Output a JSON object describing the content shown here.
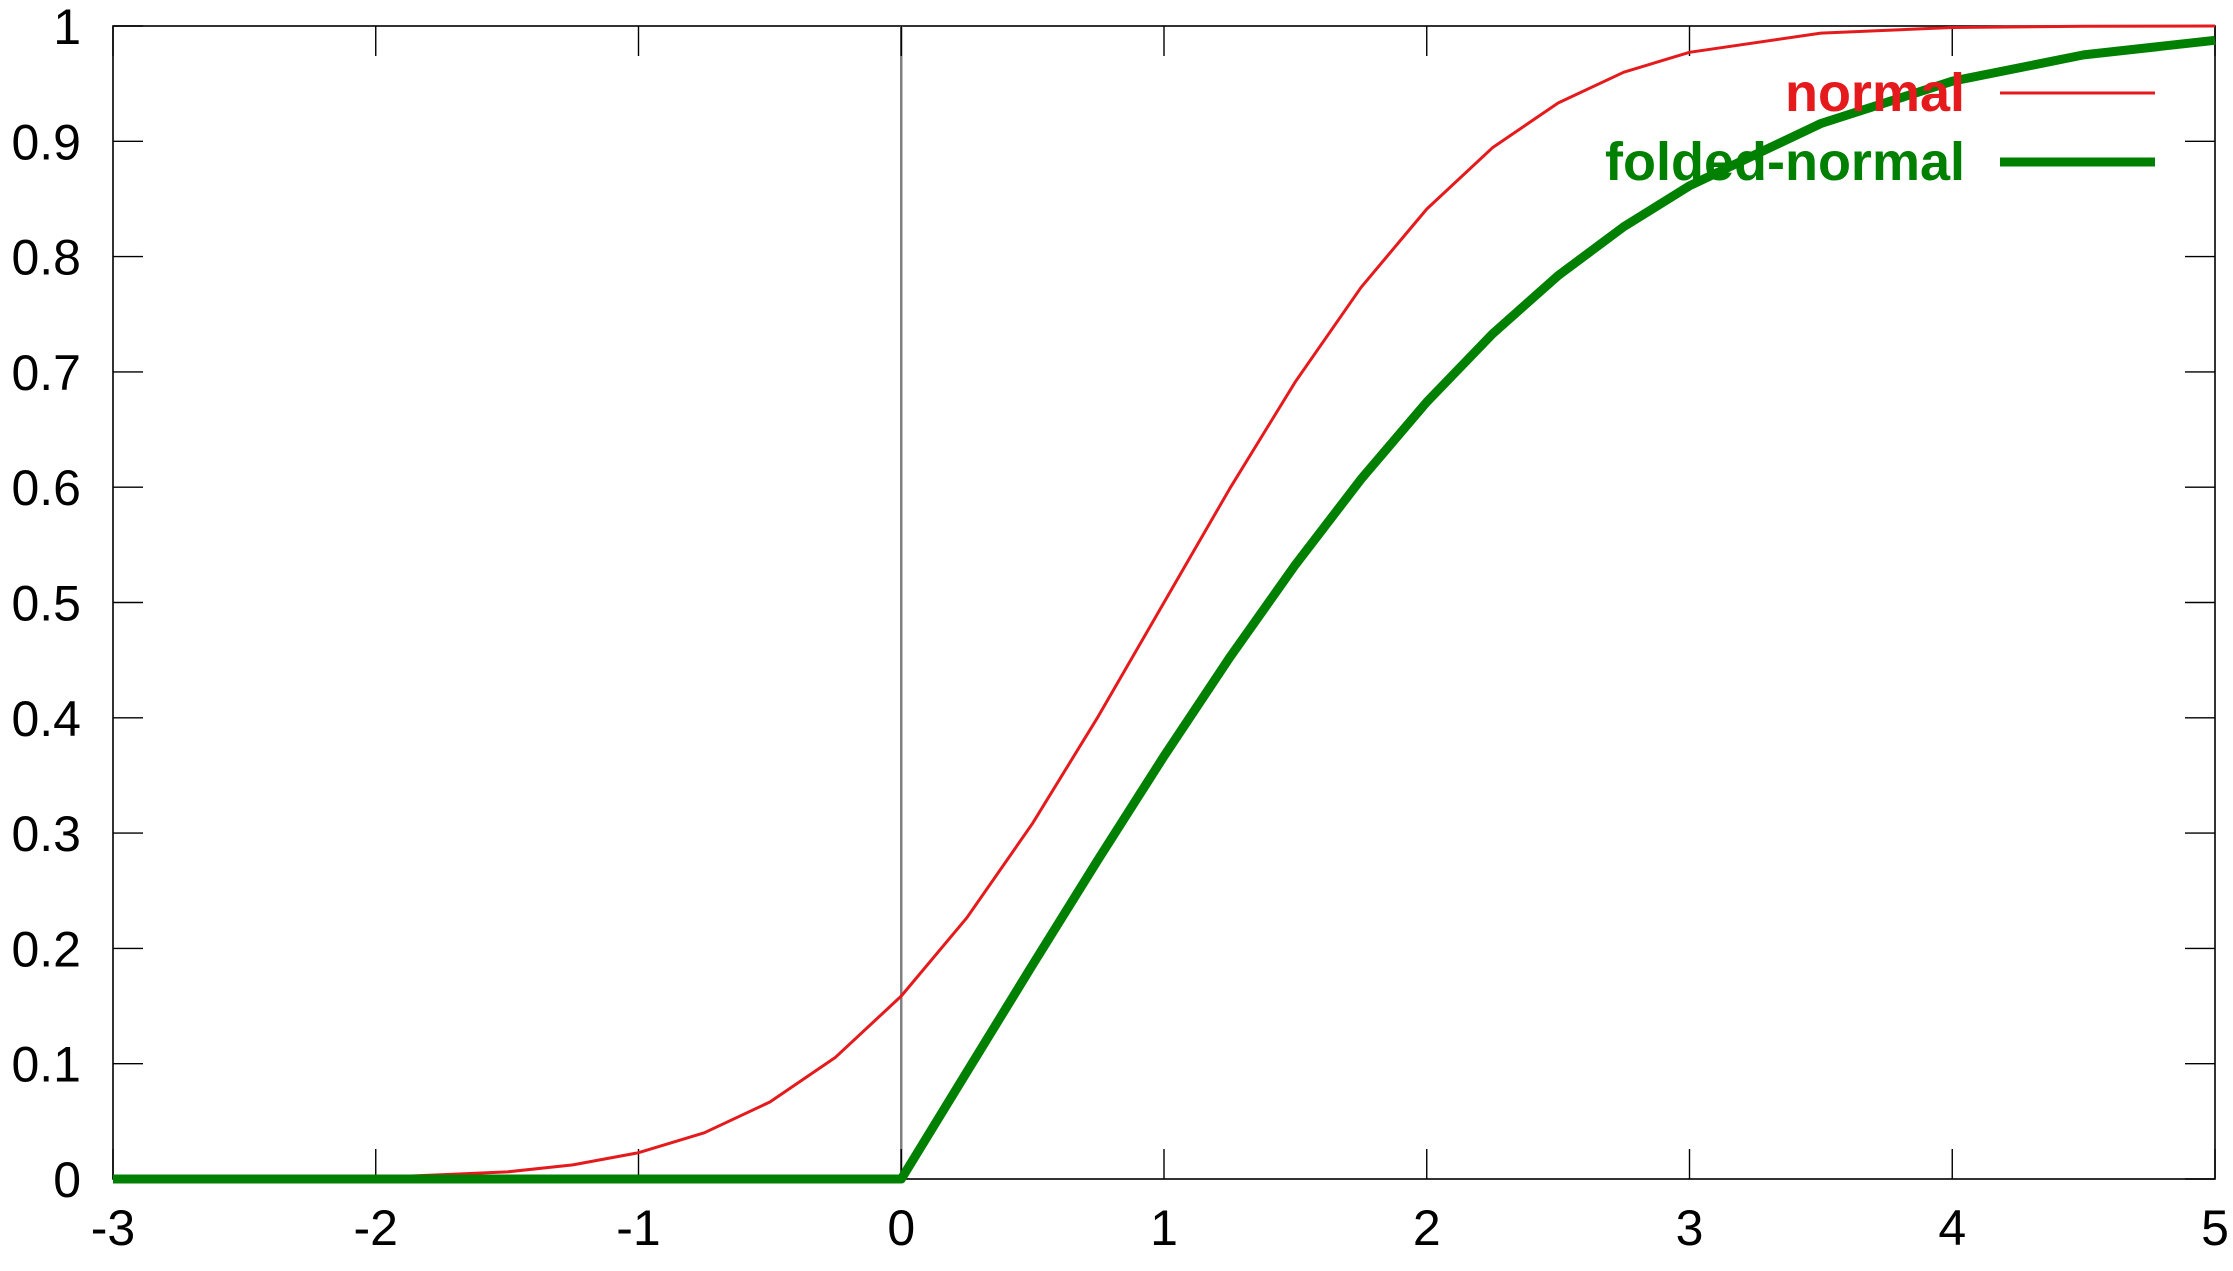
{
  "chart_data": {
    "type": "line",
    "title": "",
    "xlabel": "",
    "ylabel": "",
    "xlim": [
      -3,
      5
    ],
    "ylim": [
      0,
      1
    ],
    "x_ticks": [
      "-3",
      "-2",
      "-1",
      "0",
      "1",
      "2",
      "3",
      "4",
      "5"
    ],
    "y_ticks": [
      "0",
      "0.1",
      "0.2",
      "0.3",
      "0.4",
      "0.5",
      "0.6",
      "0.7",
      "0.8",
      "0.9",
      "1"
    ],
    "grid": false,
    "legend_placement": "top-right",
    "vertical_reference_line_x": 0,
    "series": [
      {
        "name": "normal",
        "color": "#e41a1c",
        "line_weight": "thin",
        "x": [
          -3,
          -2.5,
          -2,
          -1.75,
          -1.5,
          -1.25,
          -1,
          -0.75,
          -0.5,
          -0.25,
          0,
          0.25,
          0.5,
          0.75,
          1,
          1.25,
          1.5,
          1.75,
          2,
          2.25,
          2.5,
          2.75,
          3,
          3.5,
          4,
          4.5,
          5
        ],
        "values": [
          0.0001,
          0.0003,
          0.0013,
          0.0036,
          0.0062,
          0.0122,
          0.0228,
          0.0401,
          0.0668,
          0.1056,
          0.1587,
          0.2266,
          0.3085,
          0.4013,
          0.5,
          0.5987,
          0.6915,
          0.7734,
          0.8413,
          0.8944,
          0.9332,
          0.9599,
          0.9772,
          0.9938,
          0.9987,
          0.9998,
          1.0
        ]
      },
      {
        "name": "folded-normal",
        "color": "#008000",
        "line_weight": "thick",
        "x": [
          -3,
          0,
          0.25,
          0.5,
          0.75,
          1,
          1.25,
          1.5,
          1.75,
          2,
          2.25,
          2.5,
          2.75,
          3,
          3.5,
          4,
          4.5,
          5
        ],
        "values": [
          0,
          0,
          0.0929,
          0.1858,
          0.2774,
          0.3667,
          0.4523,
          0.5328,
          0.607,
          0.6739,
          0.7329,
          0.7835,
          0.8259,
          0.8614,
          0.9154,
          0.9521,
          0.9749,
          0.9876
        ]
      }
    ]
  }
}
